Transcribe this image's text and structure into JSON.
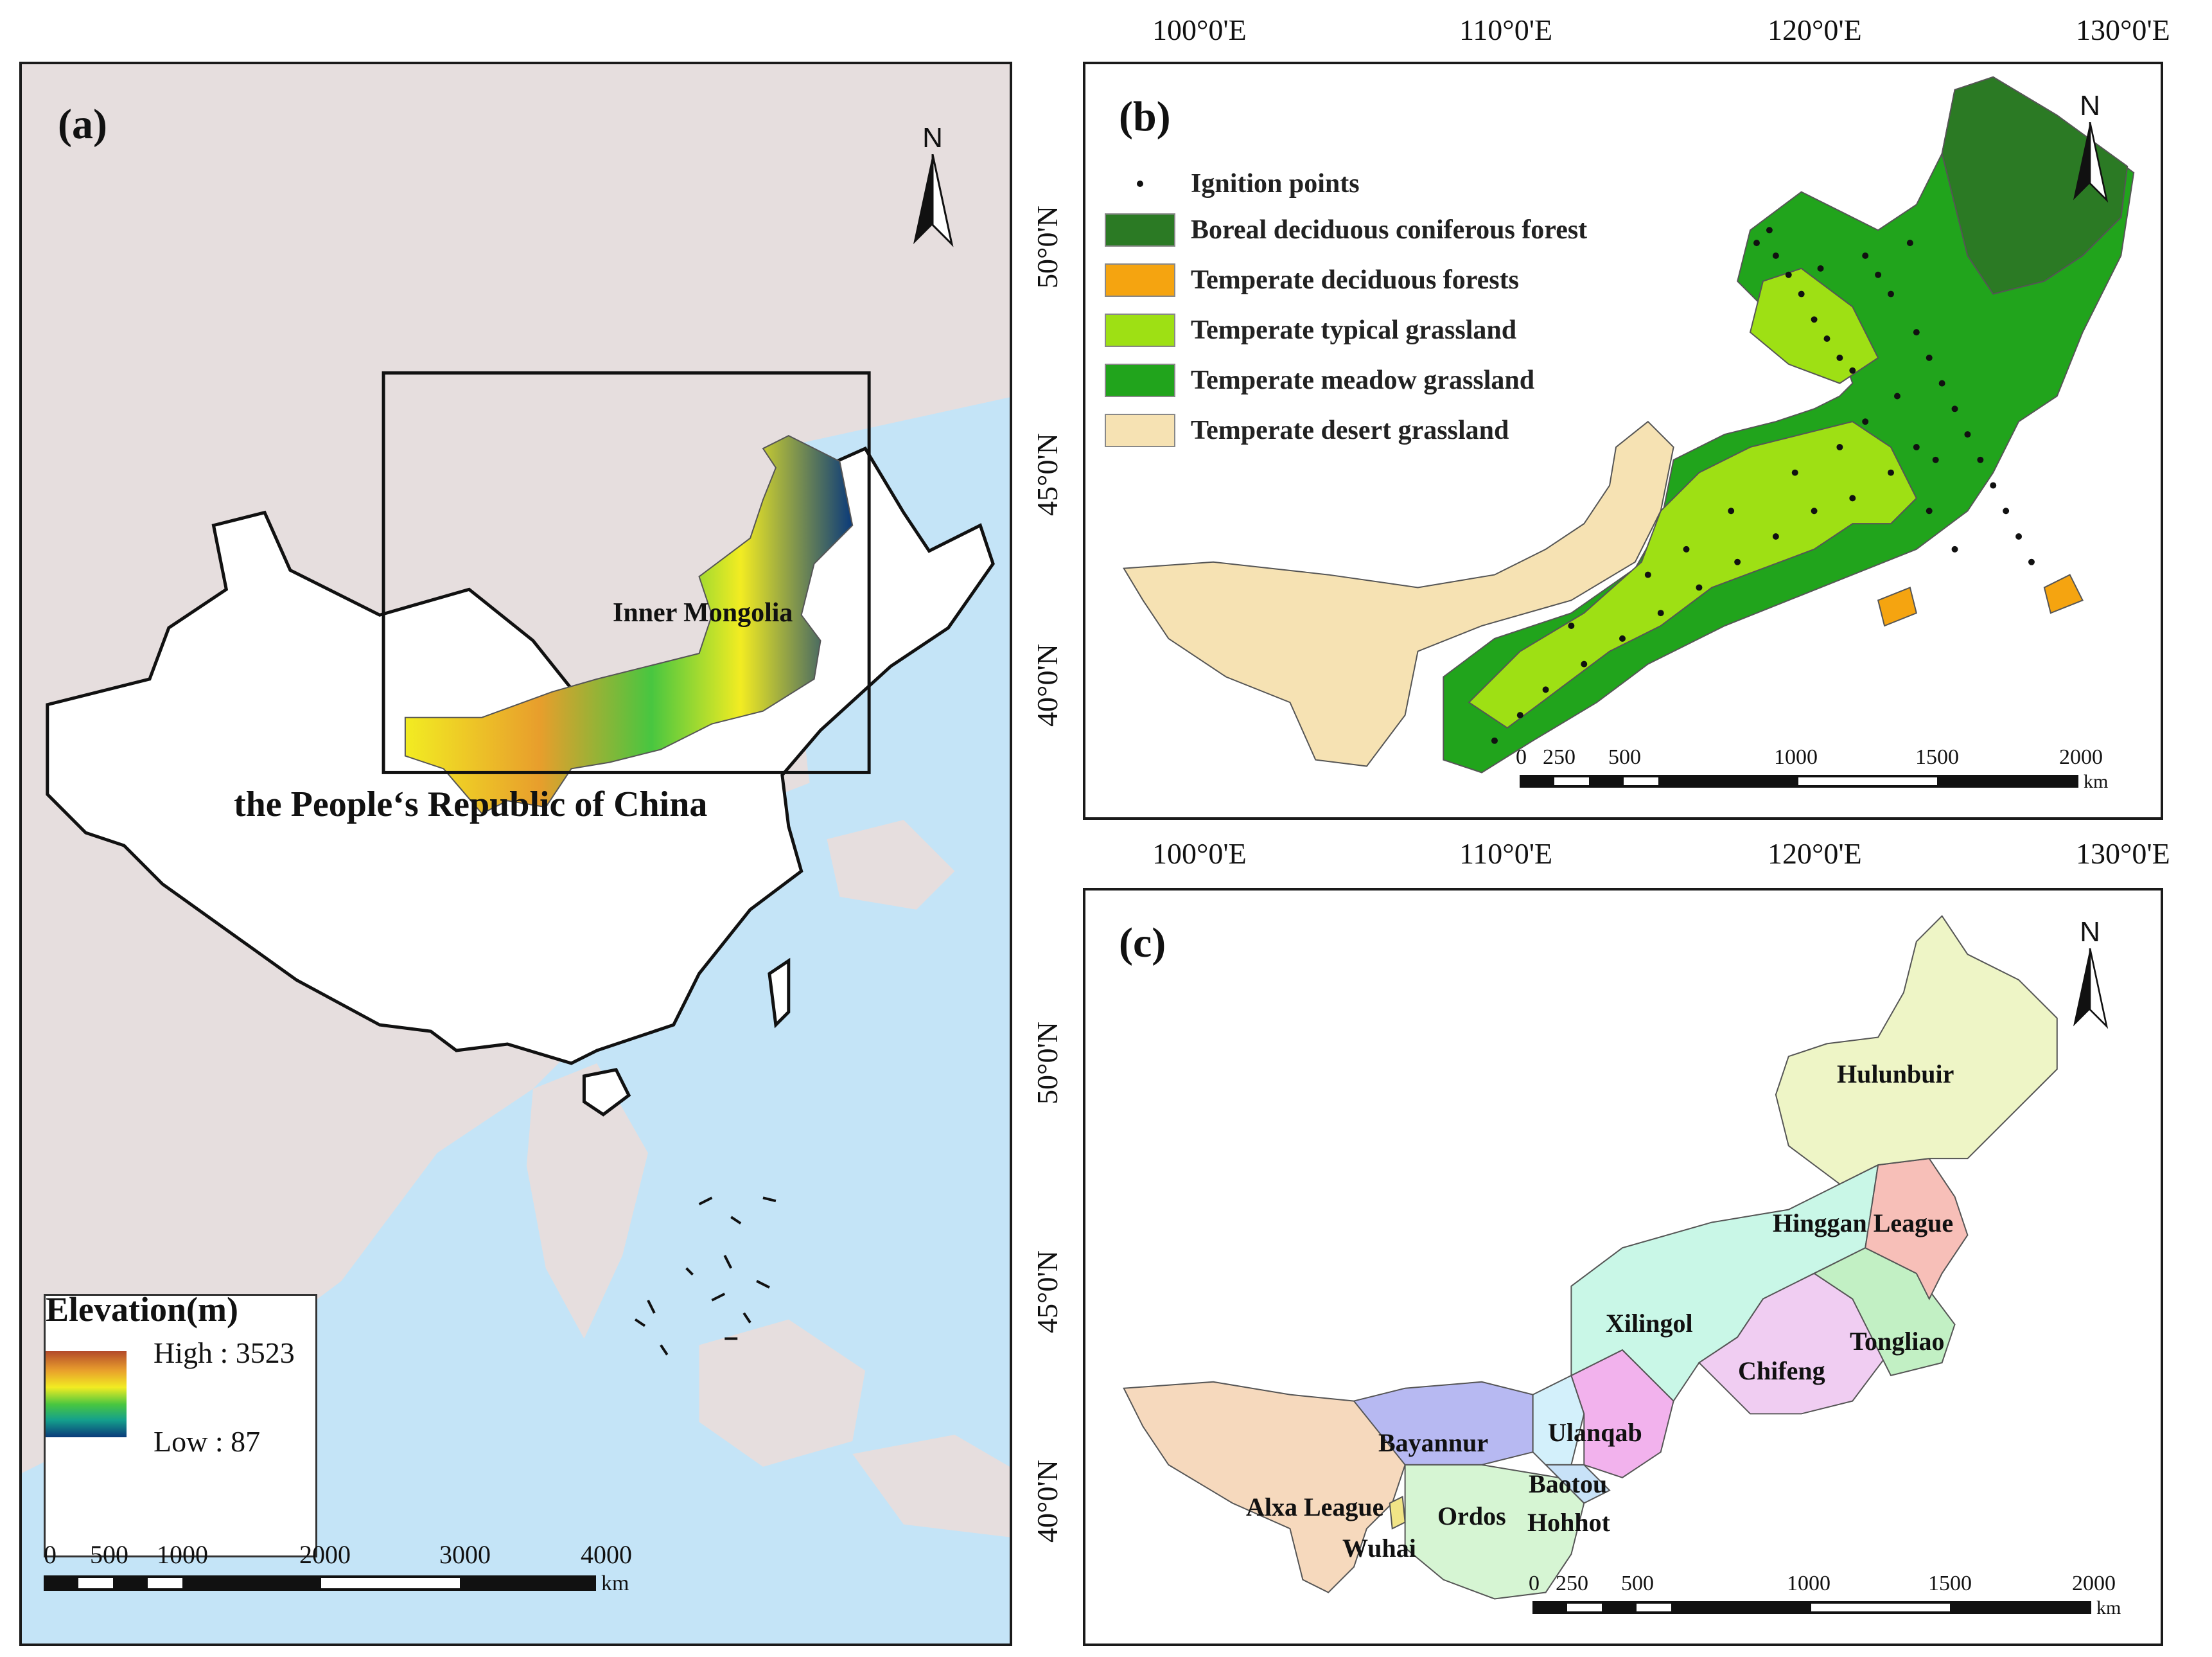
{
  "panel_a": {
    "label": "(a)",
    "country_label": "the People‘s Republic of China",
    "region_label": "Inner Mongolia",
    "north": "N",
    "legend": {
      "title": "Elevation(m)",
      "high": "High : 3523",
      "low": "Low : 87"
    },
    "scale": {
      "ticks": [
        "0",
        "500",
        "1000",
        "2000",
        "3000",
        "4000"
      ],
      "unit": "km"
    },
    "colors": {
      "land": "#e6dede",
      "sea": "#c4e4f7",
      "china": "#ffffff"
    }
  },
  "panel_b": {
    "label": "(b)",
    "north": "N",
    "lon_ticks": [
      "100°0'E",
      "110°0'E",
      "120°0'E",
      "130°0'E"
    ],
    "lat_ticks": [
      "50°0'N",
      "45°0'N",
      "40°0'N"
    ],
    "legend": [
      {
        "label": "Ignition points",
        "color": "#111111",
        "icon": "dot-icon"
      },
      {
        "label": "Boreal deciduous coniferous forest",
        "color": "#2b7a24"
      },
      {
        "label": "Temperate deciduous forests",
        "color": "#f5a410"
      },
      {
        "label": "Temperate typical grassland",
        "color": "#9ee014"
      },
      {
        "label": "Temperate meadow grassland",
        "color": "#21a41c"
      },
      {
        "label": "Temperate desert grassland",
        "color": "#f6e2b3"
      }
    ],
    "scale": {
      "ticks": [
        "0",
        "250",
        "500",
        "1000",
        "1500",
        "2000"
      ],
      "unit": "km"
    }
  },
  "panel_c": {
    "label": "(c)",
    "north": "N",
    "lon_ticks": [
      "100°0'E",
      "110°0'E",
      "120°0'E",
      "130°0'E"
    ],
    "lat_ticks": [
      "50°0'N",
      "45°0'N",
      "40°0'N"
    ],
    "regions": [
      {
        "name": "Hulunbuir",
        "color": "#eef5c6"
      },
      {
        "name": "Hinggan League",
        "color": "#f7bfb8"
      },
      {
        "name": "Xilingol",
        "color": "#c9f7e7"
      },
      {
        "name": "Tongliao",
        "color": "#c2f0c4"
      },
      {
        "name": "Chifeng",
        "color": "#f0cdf2"
      },
      {
        "name": "Ulanqab",
        "color": "#f2b2ed"
      },
      {
        "name": "Baotou",
        "color": "#d3f0fb"
      },
      {
        "name": "Hohhot",
        "color": "#c8e2f8"
      },
      {
        "name": "Bayannur",
        "color": "#b7b9f2"
      },
      {
        "name": "Ordos",
        "color": "#d6f5d3"
      },
      {
        "name": "Alxa League",
        "color": "#f6d9bd"
      },
      {
        "name": "Wuhai",
        "color": "#f1e486"
      }
    ],
    "scale": {
      "ticks": [
        "0",
        "250",
        "500",
        "1000",
        "1500",
        "2000"
      ],
      "unit": "km"
    }
  }
}
